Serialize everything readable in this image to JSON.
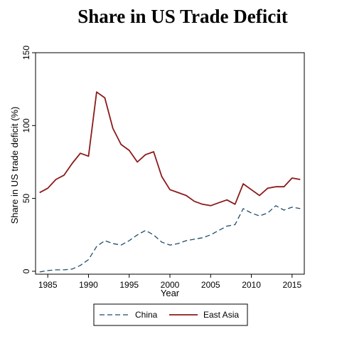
{
  "chart_data": {
    "type": "line",
    "title": "Share in US Trade Deficit",
    "xlabel": "Year",
    "ylabel": "Share in US trade deficit (%)",
    "xlim": [
      1983.5,
      2016.5
    ],
    "ylim": [
      -2,
      150
    ],
    "xticks": [
      1985,
      1990,
      1995,
      2000,
      2005,
      2010,
      2015
    ],
    "yticks": [
      0,
      50,
      100,
      150
    ],
    "grid": false,
    "legend": "bottom",
    "x": [
      1984,
      1985,
      1986,
      1987,
      1988,
      1989,
      1990,
      1991,
      1992,
      1993,
      1994,
      1995,
      1996,
      1997,
      1998,
      1999,
      2000,
      2001,
      2002,
      2003,
      2004,
      2005,
      2006,
      2007,
      2008,
      2009,
      2010,
      2011,
      2012,
      2013,
      2014,
      2015,
      2016
    ],
    "series": [
      {
        "name": "China",
        "color": "#1f4e6e",
        "dash": "dashed",
        "values": [
          -0.5,
          0.5,
          1,
          1,
          1.5,
          4,
          8,
          17,
          21,
          19,
          18,
          21,
          25,
          28,
          25,
          20,
          18,
          19,
          21,
          22,
          23,
          25,
          28,
          31,
          32,
          43,
          40,
          38,
          40,
          45,
          42,
          44,
          43
        ]
      },
      {
        "name": "East Asia",
        "color": "#8b1a1a",
        "dash": "solid",
        "values": [
          54,
          57,
          63,
          66,
          74,
          81,
          79,
          123,
          119,
          98,
          87,
          83,
          75,
          80,
          82,
          65,
          56,
          54,
          52,
          48,
          46,
          45,
          47,
          49,
          46,
          60,
          56,
          52,
          57,
          58,
          58,
          64,
          63
        ]
      }
    ]
  }
}
